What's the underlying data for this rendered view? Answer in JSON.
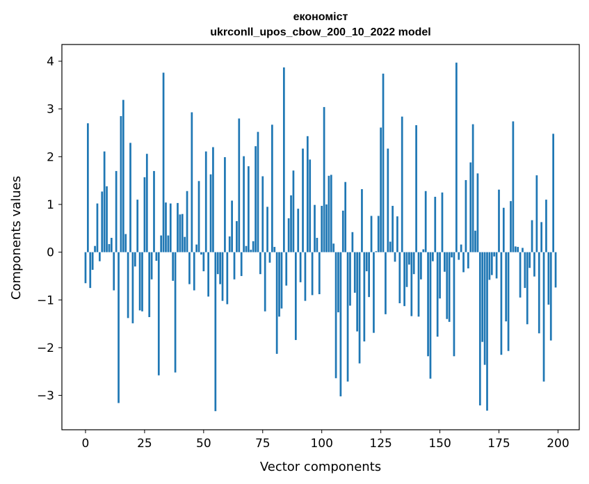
{
  "chart_data": {
    "type": "bar",
    "title": "економіст",
    "subtitle": "ukrconll_upos_cbow_200_10_2022 model",
    "xlabel": "Vector components",
    "ylabel": "Components values",
    "xlim": [
      -10,
      209
    ],
    "ylim": [
      -3.72,
      4.35
    ],
    "xticks": [
      0,
      25,
      50,
      75,
      100,
      125,
      150,
      175,
      200
    ],
    "yticks": [
      -3,
      -2,
      -1,
      0,
      1,
      2,
      3,
      4
    ],
    "grid": false,
    "bar_color": "#1f77b4",
    "x": [
      0,
      1,
      2,
      3,
      4,
      5,
      6,
      7,
      8,
      9,
      10,
      11,
      12,
      13,
      14,
      15,
      16,
      17,
      18,
      19,
      20,
      21,
      22,
      23,
      24,
      25,
      26,
      27,
      28,
      29,
      30,
      31,
      32,
      33,
      34,
      35,
      36,
      37,
      38,
      39,
      40,
      41,
      42,
      43,
      44,
      45,
      46,
      47,
      48,
      49,
      50,
      51,
      52,
      53,
      54,
      55,
      56,
      57,
      58,
      59,
      60,
      61,
      62,
      63,
      64,
      65,
      66,
      67,
      68,
      69,
      70,
      71,
      72,
      73,
      74,
      75,
      76,
      77,
      78,
      79,
      80,
      81,
      82,
      83,
      84,
      85,
      86,
      87,
      88,
      89,
      90,
      91,
      92,
      93,
      94,
      95,
      96,
      97,
      98,
      99,
      100,
      101,
      102,
      103,
      104,
      105,
      106,
      107,
      108,
      109,
      110,
      111,
      112,
      113,
      114,
      115,
      116,
      117,
      118,
      119,
      120,
      121,
      122,
      123,
      124,
      125,
      126,
      127,
      128,
      129,
      130,
      131,
      132,
      133,
      134,
      135,
      136,
      137,
      138,
      139,
      140,
      141,
      142,
      143,
      144,
      145,
      146,
      147,
      148,
      149,
      150,
      151,
      152,
      153,
      154,
      155,
      156,
      157,
      158,
      159,
      160,
      161,
      162,
      163,
      164,
      165,
      166,
      167,
      168,
      169,
      170,
      171,
      172,
      173,
      174,
      175,
      176,
      177,
      178,
      179,
      180,
      181,
      182,
      183,
      184,
      185,
      186,
      187,
      188,
      189,
      190,
      191,
      192,
      193,
      194,
      195,
      196,
      197,
      198,
      199
    ],
    "values": [
      -0.65,
      2.7,
      -0.75,
      -0.37,
      0.13,
      1.02,
      -0.19,
      1.27,
      2.11,
      1.38,
      0.17,
      0.3,
      -0.8,
      1.7,
      -3.16,
      2.85,
      3.19,
      0.38,
      -1.38,
      2.29,
      -1.49,
      -0.3,
      1.1,
      -1.22,
      -1.24,
      1.57,
      2.06,
      -1.36,
      -0.57,
      1.7,
      -0.18,
      -2.58,
      0.35,
      3.76,
      1.04,
      0.35,
      1.02,
      -0.6,
      -2.52,
      1.03,
      0.79,
      0.8,
      0.32,
      1.28,
      -0.67,
      2.93,
      -0.8,
      0.16,
      1.49,
      -0.05,
      -0.4,
      2.11,
      -0.93,
      1.63,
      2.2,
      -3.33,
      -0.46,
      -0.67,
      -1.02,
      1.99,
      -1.09,
      0.33,
      1.08,
      -0.57,
      0.65,
      2.8,
      -0.5,
      2.01,
      0.13,
      1.8,
      0.05,
      0.23,
      2.22,
      2.52,
      -0.46,
      1.59,
      -1.24,
      0.95,
      -0.22,
      2.67,
      0.11,
      -2.13,
      -1.35,
      -1.18,
      3.87,
      -0.7,
      0.71,
      1.19,
      1.71,
      -1.84,
      0.91,
      -0.63,
      2.17,
      -1.02,
      2.43,
      1.94,
      -0.9,
      0.99,
      0.3,
      -0.88,
      0.97,
      3.04,
      1.0,
      1.6,
      1.62,
      0.18,
      -2.64,
      -1.26,
      -3.02,
      0.87,
      1.47,
      -2.71,
      -1.12,
      0.42,
      -0.85,
      -1.66,
      -2.33,
      1.32,
      -1.87,
      -0.4,
      -0.94,
      0.76,
      -1.69,
      0.02,
      0.76,
      2.61,
      3.74,
      -1.3,
      2.17,
      0.22,
      0.97,
      -0.2,
      0.75,
      -1.07,
      2.84,
      -1.13,
      -0.73,
      -0.26,
      -1.34,
      -0.46,
      2.66,
      -1.35,
      -0.57,
      0.06,
      1.28,
      -2.18,
      -2.65,
      -0.19,
      1.16,
      -1.77,
      -0.97,
      1.25,
      -0.41,
      -1.4,
      -1.46,
      -0.11,
      -2.18,
      3.97,
      -0.16,
      0.16,
      -0.42,
      1.51,
      -0.34,
      1.88,
      2.68,
      0.45,
      1.65,
      -3.21,
      -1.88,
      -2.36,
      -3.32,
      -0.58,
      -0.48,
      -0.09,
      -0.55,
      1.31,
      -2.15,
      0.93,
      -1.45,
      -2.07,
      1.07,
      2.74,
      0.12,
      0.11,
      -0.95,
      0.09,
      -0.75,
      -1.51,
      -0.33,
      0.67,
      -0.51,
      1.61,
      -1.7,
      0.63,
      -2.71,
      1.1,
      -1.1,
      -1.85,
      2.48,
      -0.74
    ]
  }
}
